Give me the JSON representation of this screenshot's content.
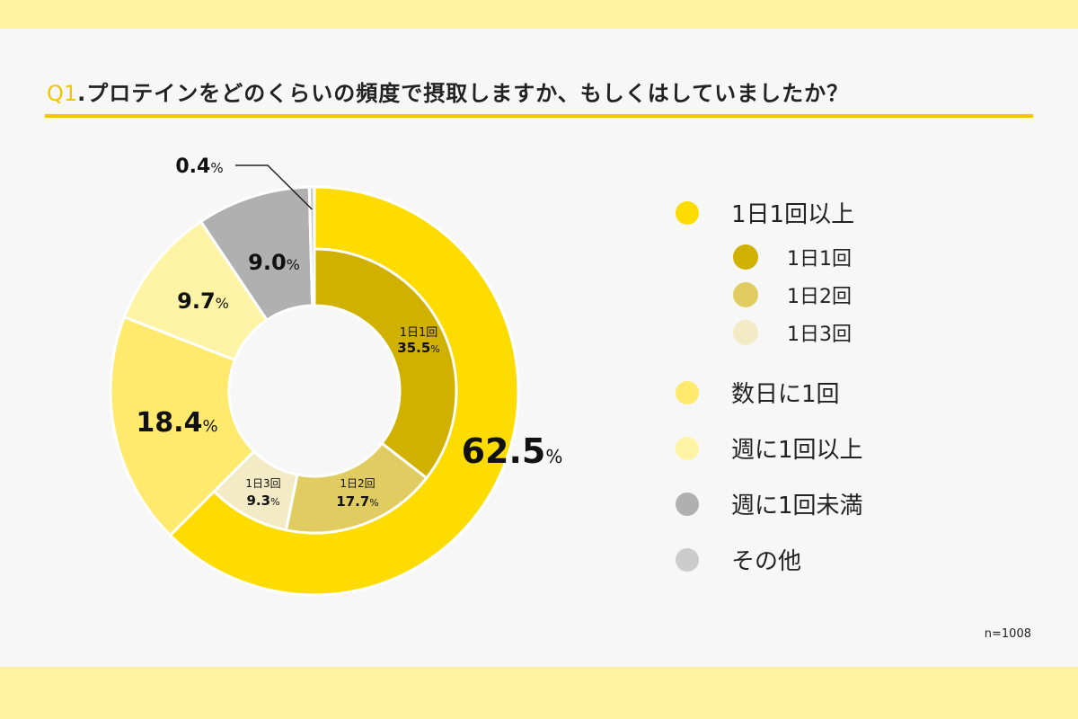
{
  "title": {
    "q": "Q1",
    "text": ".プロテインをどのくらいの頻度で摂取しますか、もしくはしていましたか？"
  },
  "n_label": "n=1008",
  "chart_data": {
    "type": "pie",
    "variant": "double-donut",
    "outer": [
      {
        "label": "1日1回以上",
        "value": 62.5,
        "value_text": "62.5",
        "color": "#ffdc00"
      },
      {
        "label": "数日に1回",
        "value": 18.4,
        "value_text": "18.4",
        "color": "#ffea6e"
      },
      {
        "label": "週に1回以上",
        "value": 9.7,
        "value_text": "9.7",
        "color": "#fff4a6"
      },
      {
        "label": "週に1回未満",
        "value": 9.0,
        "value_text": "9.0",
        "color": "#b0b0b0"
      },
      {
        "label": "その他",
        "value": 0.4,
        "value_text": "0.4",
        "color": "#cccccc"
      }
    ],
    "inner": [
      {
        "label": "1日1回",
        "value": 35.5,
        "value_text": "35.5",
        "color": "#d1b100"
      },
      {
        "label": "1日2回",
        "value": 17.7,
        "value_text": "17.7",
        "color": "#e1cc62"
      },
      {
        "label": "1日3回",
        "value": 9.3,
        "value_text": "9.3",
        "color": "#f3ebc6"
      }
    ],
    "percent_sign": "%"
  },
  "legend": [
    {
      "label": "1日1回以上",
      "color": "#ffdc00",
      "sub": false
    },
    {
      "label": "1日1回",
      "color": "#d1b100",
      "sub": true
    },
    {
      "label": "1日2回",
      "color": "#e1cc62",
      "sub": true
    },
    {
      "label": "1日3回",
      "color": "#f3ebc6",
      "sub": true
    },
    {
      "label": "数日に1回",
      "color": "#ffea6e",
      "sub": false
    },
    {
      "label": "週に1回以上",
      "color": "#fff4a6",
      "sub": false
    },
    {
      "label": "週に1回未満",
      "color": "#b0b0b0",
      "sub": false
    },
    {
      "label": "その他",
      "color": "#cccccc",
      "sub": false
    }
  ]
}
